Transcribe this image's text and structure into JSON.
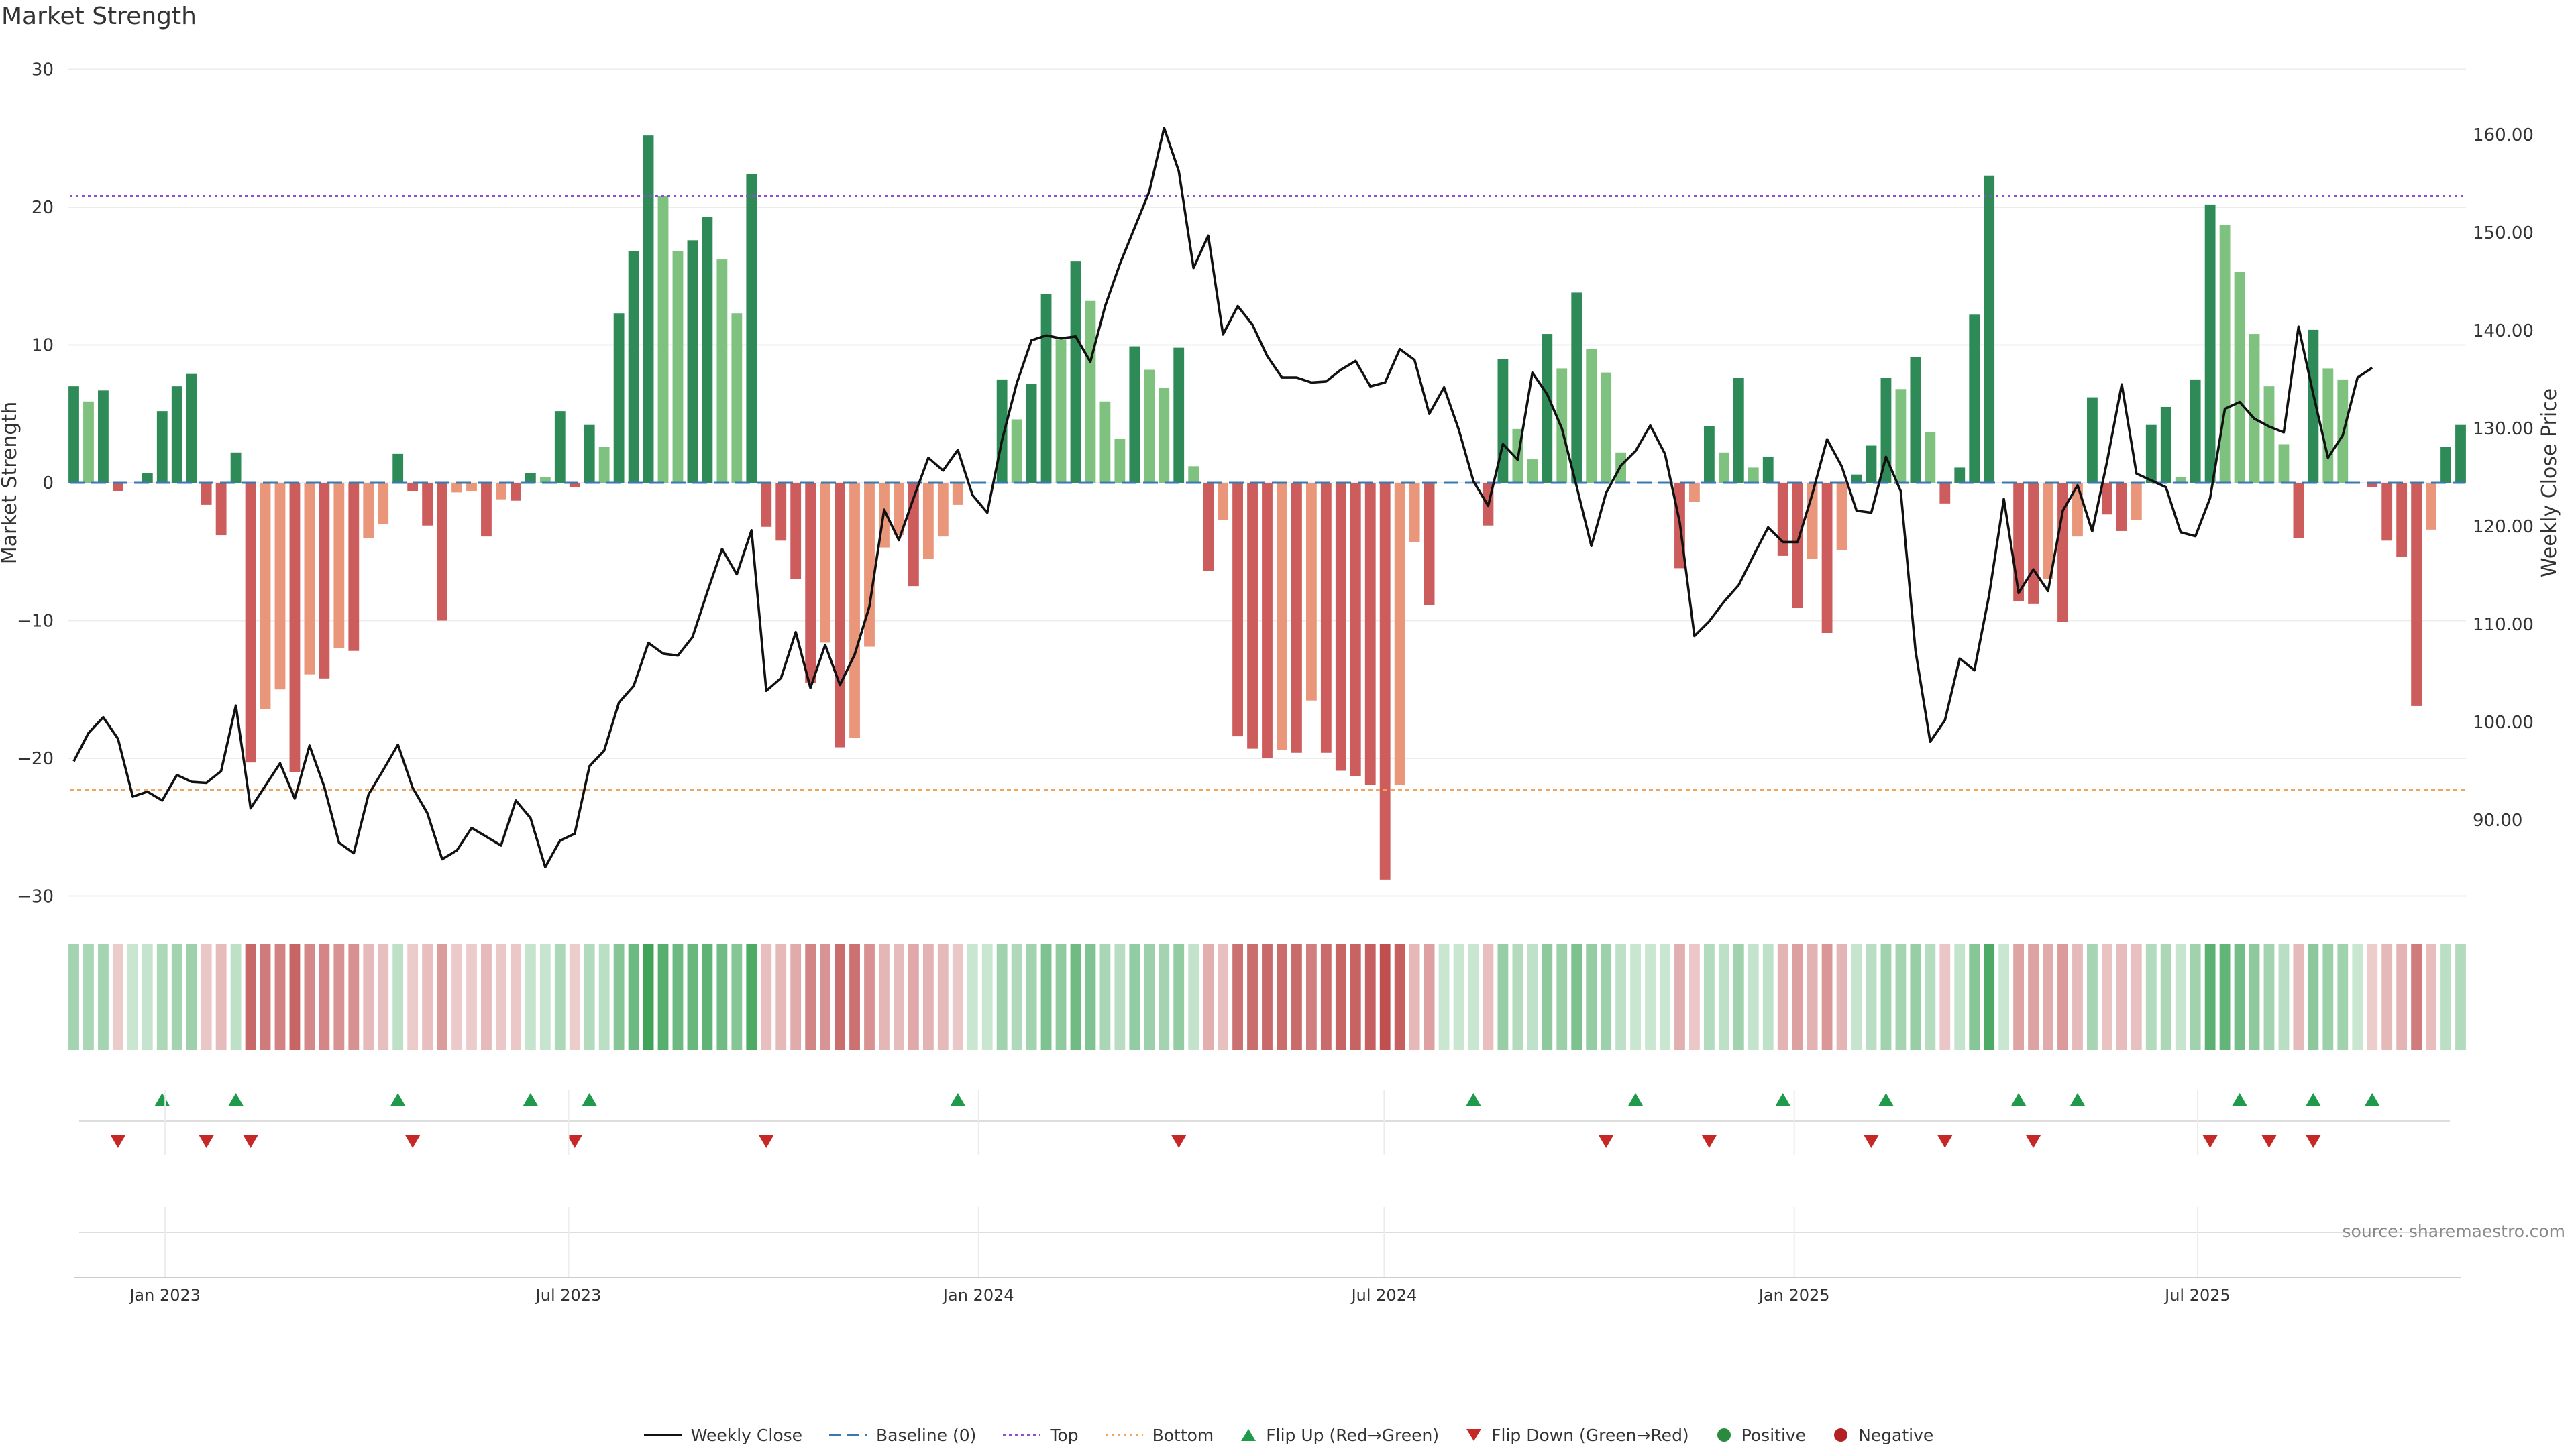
{
  "page": {
    "title": "Market Strength",
    "source": "source: sharemaestro.com"
  },
  "chart_data": {
    "type": "bar",
    "title": "Market Strength",
    "left_axis": {
      "label": "Market Strength",
      "range": [
        -30,
        30
      ],
      "ticks": [
        "30",
        "20",
        "10",
        "0",
        "−10",
        "−20",
        "−30"
      ]
    },
    "right_axis": {
      "label": "Weekly Close Price",
      "range": [
        82,
        166
      ],
      "ticks": [
        "160.00",
        "150.00",
        "140.00",
        "130.00",
        "120.00",
        "110.00",
        "100.00",
        "90.00"
      ]
    },
    "x_axis": {
      "start": "2022-11-21",
      "end": "2025-10-27",
      "tick_labels": [
        "Jan 2023",
        "Jul 2023",
        "Jan 2024",
        "Jul 2024",
        "Jan 2025",
        "Jul 2025"
      ],
      "tick_dates": [
        "2023-01-01",
        "2023-07-01",
        "2024-01-01",
        "2024-07-01",
        "2025-01-01",
        "2025-07-01"
      ]
    },
    "reference_lines": {
      "baseline": 0,
      "top": 20.8,
      "bottom": -22.3
    },
    "strength": [
      7.0,
      5.9,
      6.7,
      -0.6,
      0,
      0.7,
      5.2,
      7.0,
      7.9,
      -1.6,
      -3.8,
      2.2,
      -20.3,
      -16.4,
      -15.0,
      -21.0,
      -13.9,
      -14.2,
      -12.0,
      -12.2,
      -4.0,
      -3.0,
      2.1,
      -0.6,
      -3.1,
      -10.0,
      -0.7,
      -0.6,
      -3.9,
      -1.2,
      -1.3,
      0.7,
      0.4,
      5.2,
      -0.3,
      4.2,
      2.6,
      12.3,
      16.8,
      25.2,
      20.8,
      16.8,
      17.6,
      19.3,
      16.2,
      12.3,
      22.4,
      -3.2,
      -4.2,
      -7.0,
      -14.5,
      -11.6,
      -19.2,
      -18.5,
      -11.9,
      -4.7,
      -3.8,
      -7.5,
      -5.5,
      -3.9,
      -1.6,
      0,
      0,
      7.5,
      4.6,
      7.2,
      13.7,
      10.4,
      16.1,
      13.2,
      5.9,
      3.2,
      9.9,
      8.2,
      6.9,
      9.8,
      1.2,
      -6.4,
      -2.7,
      -18.4,
      -19.3,
      -20.0,
      -19.4,
      -19.6,
      -15.8,
      -19.6,
      -20.9,
      -21.3,
      -21.9,
      -28.8,
      -21.9,
      -4.3,
      -8.9,
      0,
      0,
      0,
      -3.1,
      9.0,
      3.9,
      1.7,
      10.8,
      8.3,
      13.8,
      9.7,
      8.0,
      2.2,
      0,
      0,
      0,
      -6.2,
      -1.4,
      4.1,
      2.2,
      7.6,
      1.1,
      1.9,
      -5.3,
      -9.1,
      -5.5,
      -10.9,
      -4.9,
      0.6,
      2.7,
      7.6,
      6.8,
      9.1,
      3.7,
      -1.5,
      1.1,
      12.2,
      22.3,
      0,
      -8.6,
      -8.8,
      -7.0,
      -10.1,
      -3.9,
      6.2,
      -2.3,
      -3.5,
      -2.7,
      4.2,
      5.5,
      0.4,
      7.5,
      20.2,
      18.7,
      15.3,
      10.8,
      7.0,
      2.8,
      -4.0,
      11.1,
      8.3,
      7.5,
      0,
      -0.3,
      -4.2,
      -5.4,
      -16.2,
      -3.4,
      2.6,
      4.2
    ],
    "series": [
      {
        "name": "Weekly Close",
        "axis": "right",
        "values": [
          96.0,
          98.9,
          100.5,
          98.3,
          92.4,
          92.9,
          92.0,
          94.6,
          93.9,
          93.8,
          95.0,
          101.7,
          91.2,
          93.5,
          95.8,
          92.2,
          97.6,
          93.4,
          87.7,
          86.6,
          92.6,
          95.1,
          97.7,
          93.3,
          90.7,
          86.0,
          86.9,
          89.2,
          88.3,
          87.4,
          92.0,
          90.2,
          85.2,
          87.9,
          88.6,
          95.5,
          97.1,
          102.0,
          103.7,
          108.1,
          107.0,
          106.8,
          108.7,
          113.3,
          117.7,
          115.1,
          119.6,
          103.2,
          104.5,
          109.2,
          103.5,
          107.9,
          103.8,
          106.9,
          111.8,
          121.7,
          118.6,
          122.9,
          127.0,
          125.7,
          127.8,
          123.2,
          121.4,
          128.8,
          134.6,
          139.0,
          139.5,
          139.2,
          139.4,
          136.8,
          142.5,
          146.8,
          150.5,
          154.2,
          160.7,
          156.3,
          146.4,
          149.7,
          139.6,
          142.5,
          140.6,
          137.4,
          135.2,
          135.2,
          134.7,
          134.8,
          136.0,
          136.9,
          134.3,
          134.7,
          138.1,
          137.0,
          131.5,
          134.2,
          129.9,
          124.6,
          122.1,
          128.4,
          126.8,
          135.7,
          133.5,
          130.0,
          124.1,
          118.0,
          123.4,
          126.2,
          127.7,
          130.3,
          127.4,
          120.4,
          108.8,
          110.3,
          112.3,
          114.0,
          117.0,
          119.9,
          118.4,
          118.4,
          123.3,
          128.9,
          126.1,
          121.6,
          121.4,
          127.1,
          123.6,
          107.3,
          98.0,
          100.2,
          106.5,
          105.3,
          113.0,
          122.8,
          113.2,
          115.6,
          113.4,
          121.6,
          124.2,
          119.5,
          126.6,
          134.5,
          125.4,
          124.7,
          124.0,
          119.4,
          119.0,
          122.9,
          132.0,
          132.7,
          131.0,
          130.2,
          129.6,
          140.4,
          133.5,
          127.0,
          129.3,
          135.2,
          136.2
        ]
      },
      {
        "name": "Baseline (0)",
        "axis": "left",
        "value": 0
      },
      {
        "name": "Top",
        "axis": "left",
        "value": 20.8
      },
      {
        "name": "Bottom",
        "axis": "left",
        "value": -22.3
      }
    ],
    "flips": {
      "up_weeks": [
        6,
        11,
        22,
        31,
        35,
        60,
        95,
        106,
        116,
        123,
        132,
        136,
        147,
        152,
        156
      ],
      "down_weeks": [
        3,
        9,
        12,
        23,
        34,
        47,
        75,
        104,
        111,
        122,
        127,
        133,
        145,
        149,
        152
      ]
    },
    "legend": {
      "items": [
        {
          "label": "Weekly Close",
          "kind": "line",
          "color": "#111111"
        },
        {
          "label": "Baseline (0)",
          "kind": "dash",
          "color": "#3a78b0"
        },
        {
          "label": "Top",
          "kind": "dot",
          "color": "#8a4fd6"
        },
        {
          "label": "Bottom",
          "kind": "dot",
          "color": "#f2a35e"
        },
        {
          "label": "Flip Up (Red→Green)",
          "kind": "tri-up",
          "color": "#1f9a4a"
        },
        {
          "label": "Flip Down (Green→Red)",
          "kind": "tri-down",
          "color": "#c62828"
        },
        {
          "label": "Positive",
          "kind": "dot-marker",
          "color": "#2a8a3e"
        },
        {
          "label": "Negative",
          "kind": "dot-marker",
          "color": "#b22222"
        }
      ],
      "placement": "bottom"
    },
    "colors": {
      "pos_strong": "#2e8b57",
      "pos_light": "#7fc27f",
      "neg_strong": "#cd5c5c",
      "neg_light": "#e9967a",
      "close_line": "#111111",
      "baseline": "#3a78b0",
      "top": "#8a4fd6",
      "bottom": "#f2a35e"
    },
    "grid": true
  }
}
